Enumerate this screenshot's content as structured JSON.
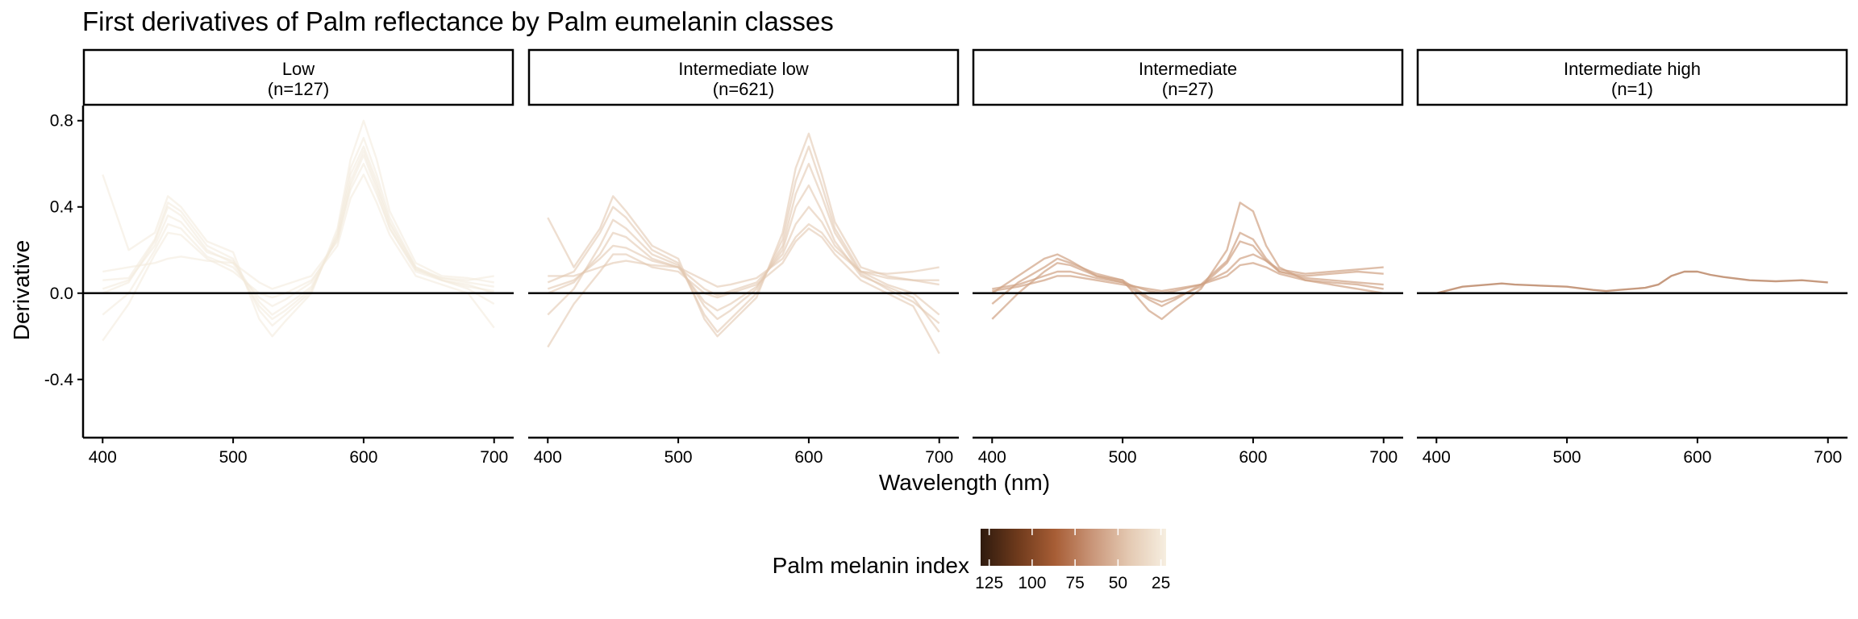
{
  "chart_data": {
    "type": "line",
    "title": "First derivatives of Palm reflectance by Palm eumelanin classes",
    "xlabel": "Wavelength (nm)",
    "ylabel": "Derivative",
    "xlim": [
      385,
      715
    ],
    "ylim": [
      -0.67,
      0.87
    ],
    "x_ticks": [
      400,
      500,
      600,
      700
    ],
    "y_ticks": [
      -0.4,
      0.0,
      0.4,
      0.8
    ],
    "y_tick_labels": [
      "-0.4",
      "0.0",
      "0.4",
      "0.8"
    ],
    "reference_line": 0,
    "grid": false,
    "facets": [
      {
        "label": "Low",
        "n_label": "(n=127)",
        "n": 127,
        "color": "#F3E9DA",
        "line_opacity": 0.55,
        "series": [
          {
            "x": [
              400,
              420,
              440,
              450,
              460,
              480,
              500,
              520,
              530,
              540,
              560,
              580,
              590,
              600,
              610,
              620,
              640,
              660,
              680,
              700
            ],
            "values": [
              0.06,
              0.07,
              0.25,
              0.42,
              0.38,
              0.22,
              0.16,
              -0.08,
              -0.15,
              -0.1,
              0.01,
              0.28,
              0.58,
              0.72,
              0.55,
              0.35,
              0.12,
              0.07,
              0.05,
              0.03
            ]
          },
          {
            "x": [
              400,
              420,
              440,
              450,
              460,
              480,
              500,
              520,
              530,
              540,
              560,
              580,
              590,
              600,
              610,
              620,
              640,
              660,
              680,
              700
            ],
            "values": [
              0.02,
              0.06,
              0.22,
              0.36,
              0.33,
              0.19,
              0.15,
              -0.04,
              -0.1,
              -0.06,
              0.03,
              0.26,
              0.52,
              0.66,
              0.5,
              0.32,
              0.11,
              0.06,
              0.04,
              0.0
            ]
          },
          {
            "x": [
              400,
              420,
              440,
              450,
              460,
              480,
              500,
              520,
              530,
              540,
              560,
              580,
              590,
              600,
              610,
              620,
              640,
              660,
              680,
              700
            ],
            "values": [
              -0.1,
              0.0,
              0.2,
              0.32,
              0.3,
              0.17,
              0.12,
              -0.02,
              -0.06,
              -0.03,
              0.05,
              0.25,
              0.48,
              0.6,
              0.46,
              0.3,
              0.1,
              0.06,
              0.02,
              -0.05
            ]
          },
          {
            "x": [
              400,
              420,
              440,
              450,
              460,
              480,
              500,
              520,
              530,
              540,
              560,
              580,
              590,
              600,
              610,
              620,
              640,
              660,
              680,
              700
            ],
            "values": [
              0.55,
              0.2,
              0.28,
              0.45,
              0.4,
              0.24,
              0.19,
              -0.12,
              -0.2,
              -0.13,
              0.0,
              0.3,
              0.62,
              0.8,
              0.62,
              0.38,
              0.14,
              0.08,
              0.07,
              0.05
            ]
          },
          {
            "x": [
              400,
              420,
              440,
              450,
              460,
              480,
              500,
              520,
              530,
              540,
              560,
              580,
              590,
              600,
              610,
              620,
              640,
              660,
              680,
              700
            ],
            "values": [
              -0.22,
              -0.05,
              0.18,
              0.28,
              0.27,
              0.16,
              0.1,
              0.0,
              -0.02,
              0.0,
              0.06,
              0.22,
              0.44,
              0.55,
              0.42,
              0.27,
              0.08,
              0.04,
              0.0,
              -0.16
            ]
          },
          {
            "x": [
              400,
              420,
              440,
              450,
              460,
              480,
              500,
              520,
              530,
              540,
              560,
              580,
              590,
              600,
              610,
              620,
              640,
              660,
              680,
              700
            ],
            "values": [
              0.1,
              0.12,
              0.14,
              0.16,
              0.17,
              0.15,
              0.14,
              0.05,
              0.02,
              0.04,
              0.08,
              0.24,
              0.5,
              0.64,
              0.48,
              0.3,
              0.11,
              0.07,
              0.06,
              0.08
            ]
          },
          {
            "x": [
              400,
              420,
              440,
              450,
              460,
              480,
              500,
              520,
              530,
              540,
              560,
              580,
              590,
              600,
              610,
              620,
              640,
              660,
              680,
              700
            ],
            "values": [
              0.0,
              0.05,
              0.24,
              0.4,
              0.36,
              0.2,
              0.14,
              -0.06,
              -0.12,
              -0.08,
              0.02,
              0.27,
              0.55,
              0.68,
              0.52,
              0.33,
              0.12,
              0.06,
              0.03,
              0.01
            ]
          }
        ]
      },
      {
        "label": "Intermediate low",
        "n_label": "(n=621)",
        "n": 621,
        "color": "#E3C8B0",
        "line_opacity": 0.6,
        "series": [
          {
            "x": [
              400,
              420,
              440,
              450,
              460,
              480,
              500,
              520,
              530,
              540,
              560,
              580,
              590,
              600,
              610,
              620,
              640,
              660,
              680,
              700
            ],
            "values": [
              0.05,
              0.1,
              0.28,
              0.4,
              0.35,
              0.2,
              0.14,
              -0.1,
              -0.18,
              -0.12,
              0.0,
              0.25,
              0.52,
              0.68,
              0.5,
              0.3,
              0.1,
              0.04,
              0.0,
              -0.1
            ]
          },
          {
            "x": [
              400,
              420,
              440,
              450,
              460,
              480,
              500,
              520,
              530,
              540,
              560,
              580,
              590,
              600,
              610,
              620,
              640,
              660,
              680,
              700
            ],
            "values": [
              0.0,
              0.05,
              0.18,
              0.28,
              0.26,
              0.16,
              0.12,
              -0.04,
              -0.08,
              -0.05,
              0.03,
              0.2,
              0.4,
              0.5,
              0.38,
              0.24,
              0.08,
              0.03,
              -0.02,
              -0.18
            ]
          },
          {
            "x": [
              400,
              420,
              440,
              450,
              460,
              480,
              500,
              520,
              530,
              540,
              560,
              580,
              590,
              600,
              610,
              620,
              640,
              660,
              680,
              700
            ],
            "values": [
              0.35,
              0.12,
              0.3,
              0.45,
              0.38,
              0.22,
              0.16,
              -0.12,
              -0.2,
              -0.14,
              -0.02,
              0.28,
              0.58,
              0.74,
              0.55,
              0.33,
              0.12,
              0.08,
              0.06,
              0.06
            ]
          },
          {
            "x": [
              400,
              420,
              440,
              450,
              460,
              480,
              500,
              520,
              530,
              540,
              560,
              580,
              590,
              600,
              610,
              620,
              640,
              660,
              680,
              700
            ],
            "values": [
              -0.25,
              -0.05,
              0.1,
              0.18,
              0.18,
              0.12,
              0.1,
              0.0,
              -0.02,
              0.0,
              0.04,
              0.14,
              0.24,
              0.3,
              0.26,
              0.18,
              0.06,
              0.0,
              -0.06,
              -0.28
            ]
          },
          {
            "x": [
              400,
              420,
              440,
              450,
              460,
              480,
              500,
              520,
              530,
              540,
              560,
              580,
              590,
              600,
              610,
              620,
              640,
              660,
              680,
              700
            ],
            "values": [
              0.08,
              0.08,
              0.12,
              0.14,
              0.15,
              0.13,
              0.12,
              0.06,
              0.03,
              0.04,
              0.07,
              0.16,
              0.26,
              0.32,
              0.28,
              0.2,
              0.1,
              0.09,
              0.1,
              0.12
            ]
          },
          {
            "x": [
              400,
              420,
              440,
              450,
              460,
              480,
              500,
              520,
              530,
              540,
              560,
              580,
              590,
              600,
              610,
              620,
              640,
              660,
              680,
              700
            ],
            "values": [
              -0.1,
              0.02,
              0.22,
              0.34,
              0.3,
              0.18,
              0.13,
              -0.06,
              -0.12,
              -0.08,
              0.02,
              0.22,
              0.46,
              0.6,
              0.45,
              0.28,
              0.09,
              0.02,
              -0.04,
              -0.14
            ]
          },
          {
            "x": [
              400,
              420,
              440,
              450,
              460,
              480,
              500,
              520,
              530,
              540,
              560,
              580,
              590,
              600,
              610,
              620,
              640,
              660,
              680,
              700
            ],
            "values": [
              0.02,
              0.06,
              0.16,
              0.22,
              0.21,
              0.15,
              0.12,
              0.02,
              -0.01,
              0.01,
              0.05,
              0.18,
              0.32,
              0.4,
              0.33,
              0.22,
              0.1,
              0.07,
              0.06,
              0.04
            ]
          }
        ]
      },
      {
        "label": "Intermediate",
        "n_label": "(n=27)",
        "n": 27,
        "color": "#D0A384",
        "line_opacity": 0.7,
        "series": [
          {
            "x": [
              400,
              420,
              440,
              450,
              460,
              480,
              500,
              520,
              530,
              540,
              560,
              580,
              590,
              600,
              610,
              620,
              640,
              660,
              680,
              700
            ],
            "values": [
              0.0,
              0.08,
              0.16,
              0.18,
              0.15,
              0.08,
              0.05,
              -0.03,
              -0.06,
              -0.03,
              0.04,
              0.15,
              0.28,
              0.25,
              0.16,
              0.1,
              0.08,
              0.09,
              0.1,
              0.09
            ]
          },
          {
            "x": [
              400,
              420,
              440,
              450,
              460,
              480,
              500,
              520,
              530,
              540,
              560,
              580,
              590,
              600,
              610,
              620,
              640,
              660,
              680,
              700
            ],
            "values": [
              -0.12,
              0.0,
              0.1,
              0.14,
              0.13,
              0.08,
              0.06,
              -0.08,
              -0.12,
              -0.07,
              0.02,
              0.2,
              0.42,
              0.38,
              0.22,
              0.12,
              0.06,
              0.05,
              0.04,
              0.02
            ]
          },
          {
            "x": [
              400,
              420,
              440,
              450,
              460,
              480,
              500,
              520,
              530,
              540,
              560,
              580,
              590,
              600,
              610,
              620,
              640,
              660,
              680,
              700
            ],
            "values": [
              0.02,
              0.04,
              0.08,
              0.1,
              0.1,
              0.07,
              0.05,
              0.01,
              0.0,
              0.01,
              0.04,
              0.1,
              0.16,
              0.18,
              0.15,
              0.11,
              0.09,
              0.1,
              0.11,
              0.12
            ]
          },
          {
            "x": [
              400,
              420,
              440,
              450,
              460,
              480,
              500,
              520,
              530,
              540,
              560,
              580,
              590,
              600,
              610,
              620,
              640,
              660,
              680,
              700
            ],
            "values": [
              -0.05,
              0.05,
              0.12,
              0.16,
              0.14,
              0.09,
              0.06,
              -0.02,
              -0.04,
              -0.02,
              0.03,
              0.14,
              0.24,
              0.22,
              0.15,
              0.1,
              0.07,
              0.06,
              0.05,
              0.04
            ]
          },
          {
            "x": [
              400,
              420,
              440,
              450,
              460,
              480,
              500,
              520,
              530,
              540,
              560,
              580,
              590,
              600,
              610,
              620,
              640,
              660,
              680,
              700
            ],
            "values": [
              0.01,
              0.03,
              0.06,
              0.08,
              0.08,
              0.06,
              0.04,
              0.02,
              0.01,
              0.02,
              0.04,
              0.08,
              0.13,
              0.14,
              0.12,
              0.09,
              0.06,
              0.04,
              0.02,
              0.0
            ]
          }
        ]
      },
      {
        "label": "Intermediate high",
        "n_label": "(n=1)",
        "n": 1,
        "color": "#C69A7F",
        "line_opacity": 1,
        "series": [
          {
            "x": [
              400,
              420,
              440,
              450,
              460,
              480,
              500,
              520,
              530,
              540,
              560,
              570,
              580,
              590,
              600,
              610,
              620,
              640,
              660,
              680,
              700
            ],
            "values": [
              0.0,
              0.03,
              0.04,
              0.045,
              0.04,
              0.035,
              0.03,
              0.015,
              0.01,
              0.015,
              0.025,
              0.04,
              0.08,
              0.1,
              0.1,
              0.085,
              0.075,
              0.06,
              0.055,
              0.06,
              0.05
            ]
          }
        ]
      }
    ],
    "legend": {
      "title": "Palm melanin index",
      "placement": "bottom",
      "type": "colorbar",
      "breaks": [
        125,
        100,
        75,
        50,
        25
      ],
      "break_labels": [
        "125",
        "100",
        "75",
        "50",
        "25"
      ],
      "range": [
        130,
        22
      ],
      "colors": [
        "#2E1A0E",
        "#6E3A1C",
        "#A75D35",
        "#C99578",
        "#E4C9B2",
        "#F6EEE0"
      ]
    }
  }
}
